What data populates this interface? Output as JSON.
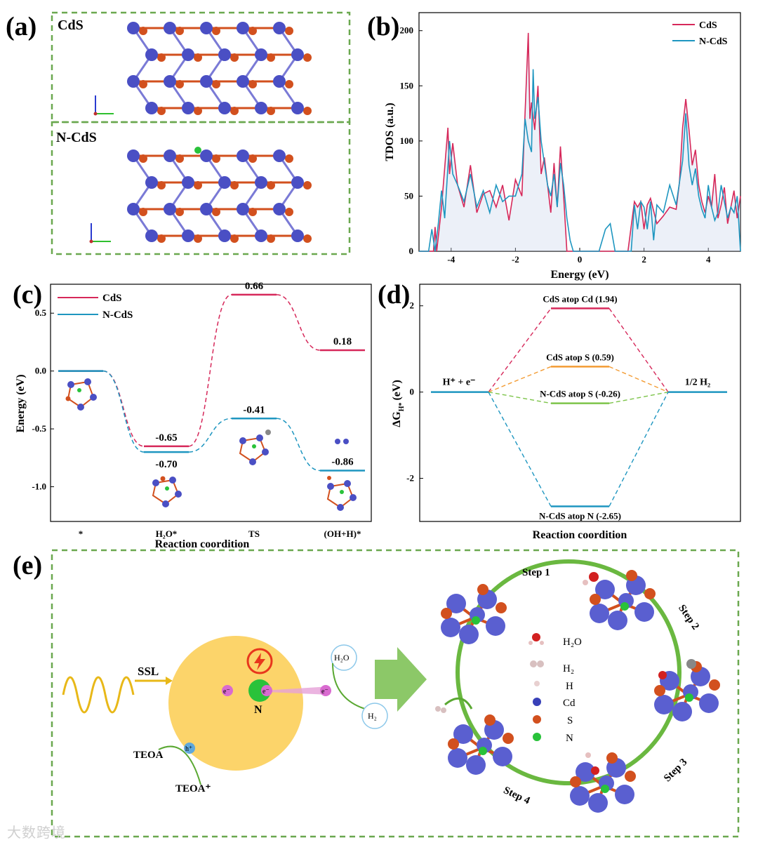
{
  "panel_labels": {
    "a": "(a)",
    "b": "(b)",
    "c": "(c)",
    "d": "(d)",
    "e": "(e)"
  },
  "panel_a": {
    "top_label": "CdS",
    "bottom_label": "N-CdS"
  },
  "colors": {
    "cds": "#d6285a",
    "ncds": "#1e96c0",
    "cd_atom": "#4a4fc4",
    "s_atom": "#d2501e",
    "n_atom": "#29c23a",
    "green_border": "#6aa84f",
    "sun": "#fcd46a",
    "arrow_green": "#5aa832"
  },
  "chart_data": [
    {
      "id": "b",
      "type": "line",
      "title": "",
      "xlabel": "Energy (eV)",
      "ylabel": "TDOS (a.u.)",
      "xlim": [
        -5,
        5
      ],
      "ylim": [
        0,
        210
      ],
      "xticks": [
        -4,
        -2,
        0,
        2,
        4
      ],
      "yticks": [
        0,
        50,
        100,
        150,
        200
      ],
      "legend": [
        "CdS",
        "N-CdS"
      ],
      "series": [
        {
          "name": "CdS",
          "x": [
            -5,
            -4.55,
            -4.5,
            -4.45,
            -4.3,
            -4.1,
            -4.05,
            -3.95,
            -3.8,
            -3.6,
            -3.4,
            -3.2,
            -3,
            -2.8,
            -2.6,
            -2.4,
            -2.2,
            -2.0,
            -1.8,
            -1.7,
            -1.6,
            -1.55,
            -1.5,
            -1.4,
            -1.3,
            -1.2,
            -1.1,
            -1.0,
            -0.9,
            -0.8,
            -0.7,
            -0.6,
            -0.5,
            -0.4,
            -0.3,
            0,
            0.8,
            0.9,
            1,
            1.5,
            1.7,
            1.8,
            1.9,
            2.0,
            2.1,
            2.2,
            2.4,
            2.6,
            2.8,
            3.0,
            3.1,
            3.2,
            3.3,
            3.4,
            3.5,
            3.6,
            3.7,
            3.8,
            3.9,
            4.0,
            4.1,
            4.2,
            4.3,
            4.4,
            4.5,
            4.6,
            4.7,
            4.8,
            4.9,
            5
          ],
          "y": [
            0,
            0,
            22,
            0,
            40,
            112,
            70,
            98,
            60,
            40,
            78,
            35,
            52,
            55,
            40,
            60,
            28,
            65,
            50,
            125,
            198,
            120,
            135,
            110,
            150,
            70,
            85,
            60,
            35,
            80,
            40,
            95,
            50,
            0,
            0,
            0,
            0,
            0,
            0,
            0,
            45,
            40,
            45,
            20,
            42,
            48,
            25,
            32,
            40,
            38,
            62,
            112,
            138,
            110,
            78,
            92,
            60,
            45,
            35,
            50,
            40,
            70,
            30,
            42,
            58,
            25,
            40,
            55,
            30,
            50
          ]
        },
        {
          "name": "N-CdS",
          "x": [
            -5,
            -4.7,
            -4.6,
            -4.5,
            -4.4,
            -4.3,
            -4.2,
            -4.05,
            -3.95,
            -3.8,
            -3.6,
            -3.4,
            -3.2,
            -3,
            -2.8,
            -2.6,
            -2.4,
            -2.2,
            -2.0,
            -1.8,
            -1.7,
            -1.6,
            -1.5,
            -1.45,
            -1.4,
            -1.3,
            -1.2,
            -1.1,
            -1.0,
            -0.9,
            -0.8,
            -0.7,
            -0.6,
            -0.5,
            -0.4,
            -0.3,
            -0.2,
            0,
            0.6,
            0.8,
            0.95,
            1.1,
            1.6,
            1.7,
            1.8,
            1.9,
            2.0,
            2.1,
            2.2,
            2.3,
            2.4,
            2.6,
            2.8,
            3.0,
            3.2,
            3.3,
            3.4,
            3.5,
            3.6,
            3.7,
            3.8,
            3.9,
            4.0,
            4.1,
            4.2,
            4.3,
            4.4,
            4.5,
            4.6,
            4.7,
            4.8,
            4.9,
            5
          ],
          "y": [
            0,
            0,
            20,
            0,
            25,
            55,
            30,
            100,
            70,
            60,
            45,
            70,
            40,
            55,
            35,
            60,
            45,
            50,
            50,
            70,
            120,
            100,
            90,
            165,
            120,
            140,
            100,
            80,
            60,
            50,
            70,
            40,
            80,
            60,
            30,
            10,
            0,
            0,
            0,
            20,
            25,
            0,
            0,
            42,
            20,
            45,
            40,
            20,
            45,
            10,
            42,
            35,
            60,
            42,
            82,
            125,
            78,
            60,
            75,
            50,
            38,
            30,
            60,
            40,
            28,
            35,
            60,
            45,
            30,
            40,
            35,
            50,
            0
          ]
        }
      ]
    },
    {
      "id": "c",
      "type": "line",
      "xlabel": "Reaction coordition",
      "ylabel": "Energy (eV)",
      "ylim": [
        -1.3,
        0.75
      ],
      "yticks": [
        0.5,
        0.0,
        -0.5,
        -1.0
      ],
      "categories": [
        "*",
        "H₂O*",
        "TS",
        "(OH+H)*"
      ],
      "legend": [
        "CdS",
        "N-CdS"
      ],
      "series": [
        {
          "name": "CdS",
          "values": [
            0.0,
            -0.65,
            0.66,
            0.18
          ]
        },
        {
          "name": "N-CdS",
          "values": [
            0.0,
            -0.7,
            -0.41,
            -0.86
          ]
        }
      ],
      "labels": {
        "cds": [
          "",
          "-0.65",
          "0.66",
          "0.18"
        ],
        "ncds": [
          "",
          "-0.70",
          "-0.41",
          "-0.86"
        ]
      }
    },
    {
      "id": "d",
      "type": "line",
      "xlabel": "Reaction coordition",
      "ylabel": "ΔG",
      "ylabel_sub": "H*",
      "ylabel_unit": "(eV)",
      "ylim": [
        -3.0,
        2.5
      ],
      "yticks": [
        2,
        0,
        -2
      ],
      "start_label": "H⁺ + e⁻",
      "end_label": "1/2 H₂",
      "series": [
        {
          "name": "CdS atop Cd (1.94)",
          "value": 1.94,
          "color": "#d6285a"
        },
        {
          "name": "CdS atop S (0.59)",
          "value": 0.59,
          "color": "#f39c34"
        },
        {
          "name": "N-CdS  atop S (-0.26)",
          "value": -0.26,
          "color": "#7dc44a"
        },
        {
          "name": "N-CdS  atop N (-2.65)",
          "value": -2.65,
          "color": "#1e96c0"
        }
      ]
    }
  ],
  "panel_e": {
    "light_label": "SSL",
    "n_label": "N",
    "electron": "e⁻",
    "hole": "h⁺",
    "teoa": "TEOA",
    "teoa_plus": "TEOA⁺",
    "h2o": "H₂O",
    "h2": "H₂",
    "steps": [
      "Step 1",
      "Step 2",
      "Step 3",
      "Step 4"
    ],
    "legend": [
      "H₂O",
      "H₂",
      "H",
      "Cd",
      "S",
      "N"
    ]
  },
  "watermark": "大数跨境"
}
